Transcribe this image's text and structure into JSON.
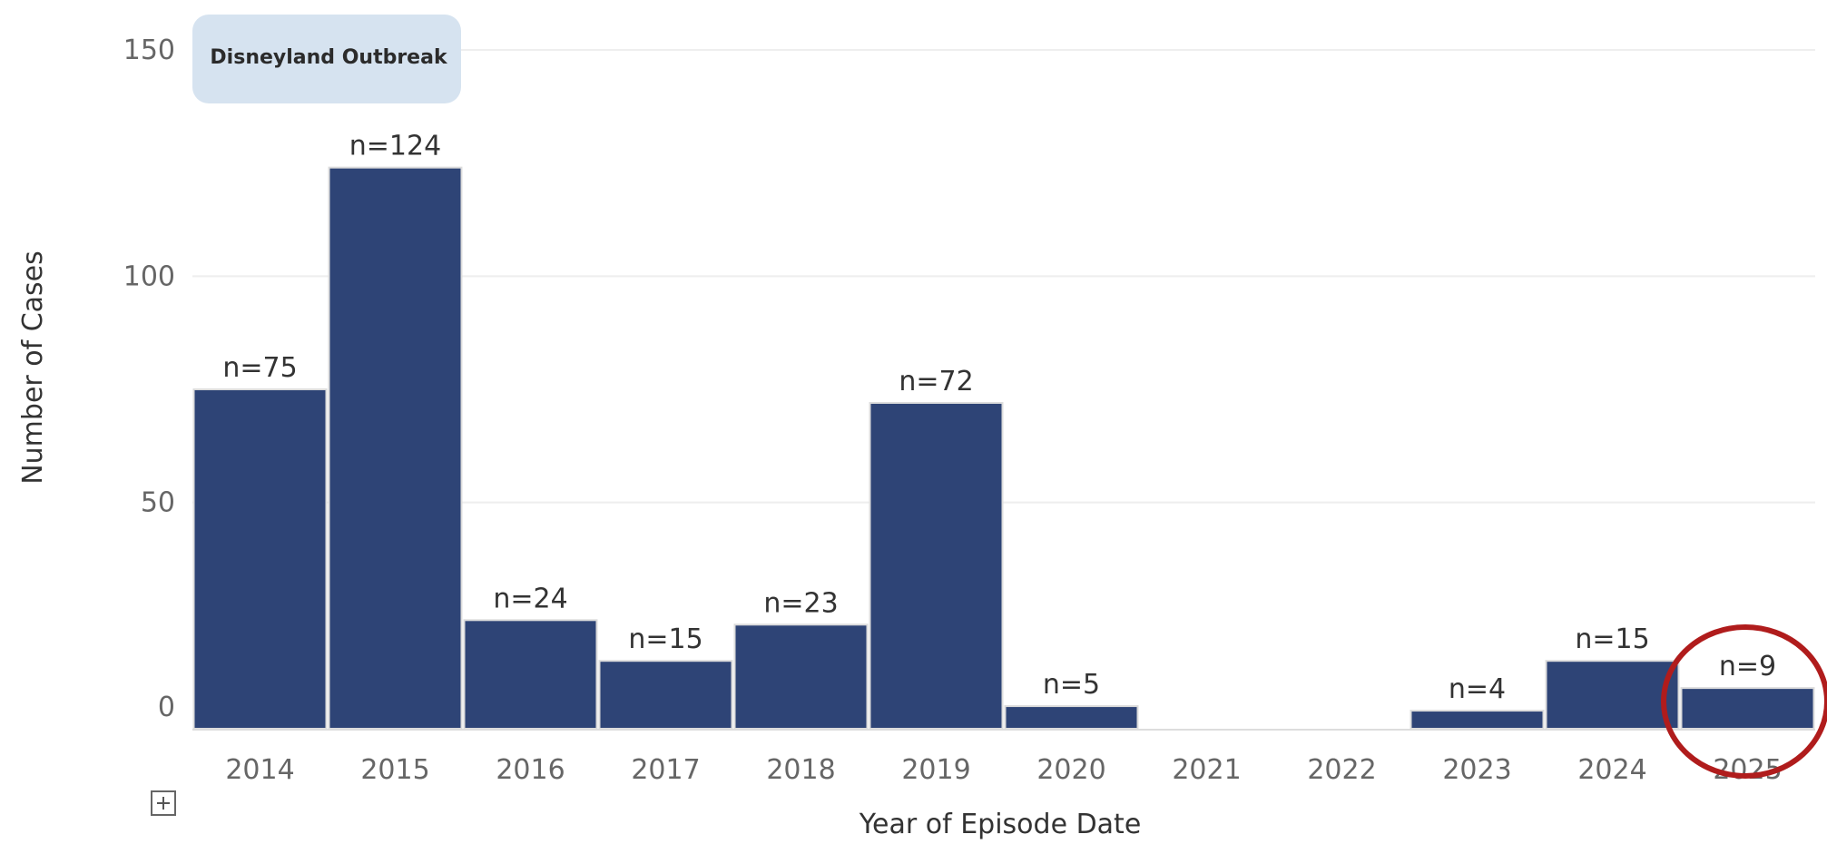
{
  "chart_data": {
    "type": "bar",
    "categories": [
      "2014",
      "2015",
      "2016",
      "2017",
      "2018",
      "2019",
      "2020",
      "2021",
      "2022",
      "2023",
      "2024",
      "2025"
    ],
    "values": [
      75,
      124,
      24,
      15,
      23,
      72,
      5,
      0,
      0,
      4,
      15,
      9
    ],
    "data_labels": [
      "n=75",
      "n=124",
      "n=24",
      "n=15",
      "n=23",
      "n=72",
      "n=5",
      "",
      "",
      "n=4",
      "n=15",
      "n=9"
    ],
    "xlabel": "Year of Episode Date",
    "ylabel": "Number of Cases",
    "ylim": [
      0,
      150
    ],
    "yticks": [
      0,
      50,
      100,
      150
    ],
    "grid": true,
    "bar_color": "#2e4476",
    "highlight_category": "2025",
    "highlight_color": "#b01c1c",
    "annotation": {
      "text": "Disneyland Outbreak",
      "background": "#d6e3f0"
    }
  },
  "controls": {
    "expand_icon": "plus-square-icon"
  }
}
